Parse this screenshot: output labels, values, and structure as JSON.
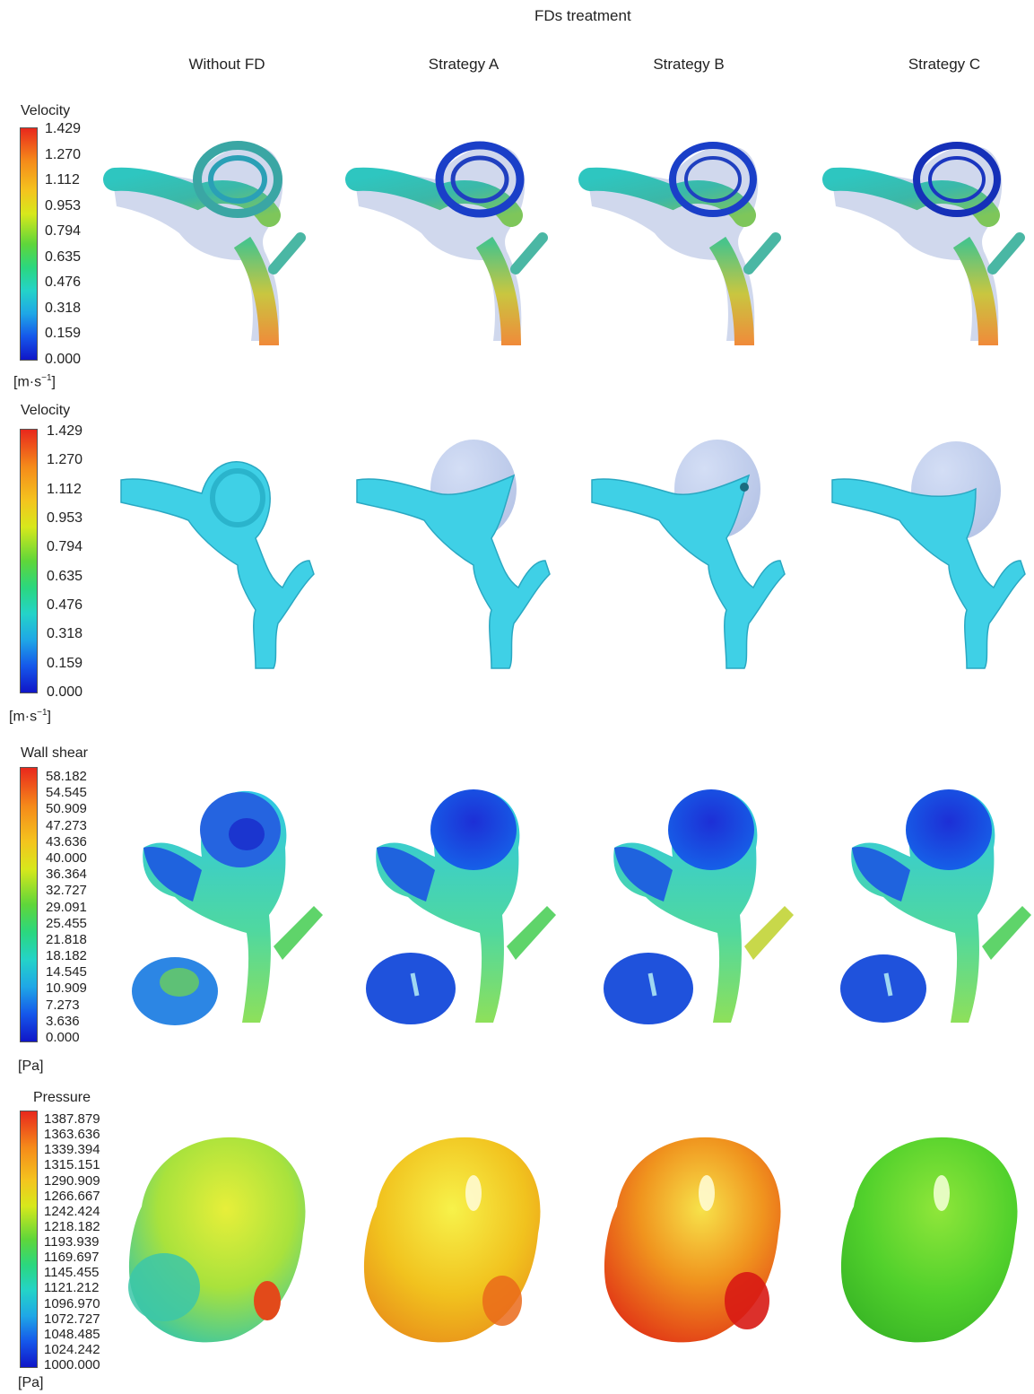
{
  "figure": {
    "title": "FDs treatment",
    "columns": [
      "Without FD",
      "Strategy A",
      "Strategy B",
      "Strategy C"
    ]
  },
  "rows": [
    {
      "id": "streamline",
      "legend_title": "Velocity",
      "unit_base": "[m·s",
      "unit_sup": "−1",
      "unit_close": "]",
      "ticks": [
        "1.429",
        "1.270",
        "1.112",
        "0.953",
        "0.794",
        "0.635",
        "0.476",
        "0.318",
        "0.159",
        "0.000"
      ]
    },
    {
      "id": "iso-surface",
      "legend_title": "Velocity",
      "unit_base": "[m·s",
      "unit_sup": "−1",
      "unit_close": "]",
      "ticks": [
        "1.429",
        "1.270",
        "1.112",
        "0.953",
        "0.794",
        "0.635",
        "0.476",
        "0.318",
        "0.159",
        "0.000"
      ]
    },
    {
      "id": "wall-shear",
      "legend_title": "Wall shear",
      "unit_base": "[Pa]",
      "ticks": [
        "58.182",
        "54.545",
        "50.909",
        "47.273",
        "43.636",
        "40.000",
        "36.364",
        "32.727",
        "29.091",
        "25.455",
        "21.818",
        "18.182",
        "14.545",
        "10.909",
        "7.273",
        "3.636",
        "0.000"
      ]
    },
    {
      "id": "pressure",
      "legend_title": "Pressure",
      "unit_base": "[Pa]",
      "ticks": [
        "1387.879",
        "1363.636",
        "1339.394",
        "1315.151",
        "1290.909",
        "1266.667",
        "1242.424",
        "1218.182",
        "1193.939",
        "1169.697",
        "1145.455",
        "1121.212",
        "1096.970",
        "1072.727",
        "1048.485",
        "1024.242",
        "1000.000"
      ]
    }
  ],
  "colors": {
    "scale_high": "#e8281c",
    "scale_mid": "#5fd63a",
    "scale_low": "#1016c8",
    "vessel_cyan": "#3fd0e6",
    "sac_translucent": "#b9c7e8"
  }
}
